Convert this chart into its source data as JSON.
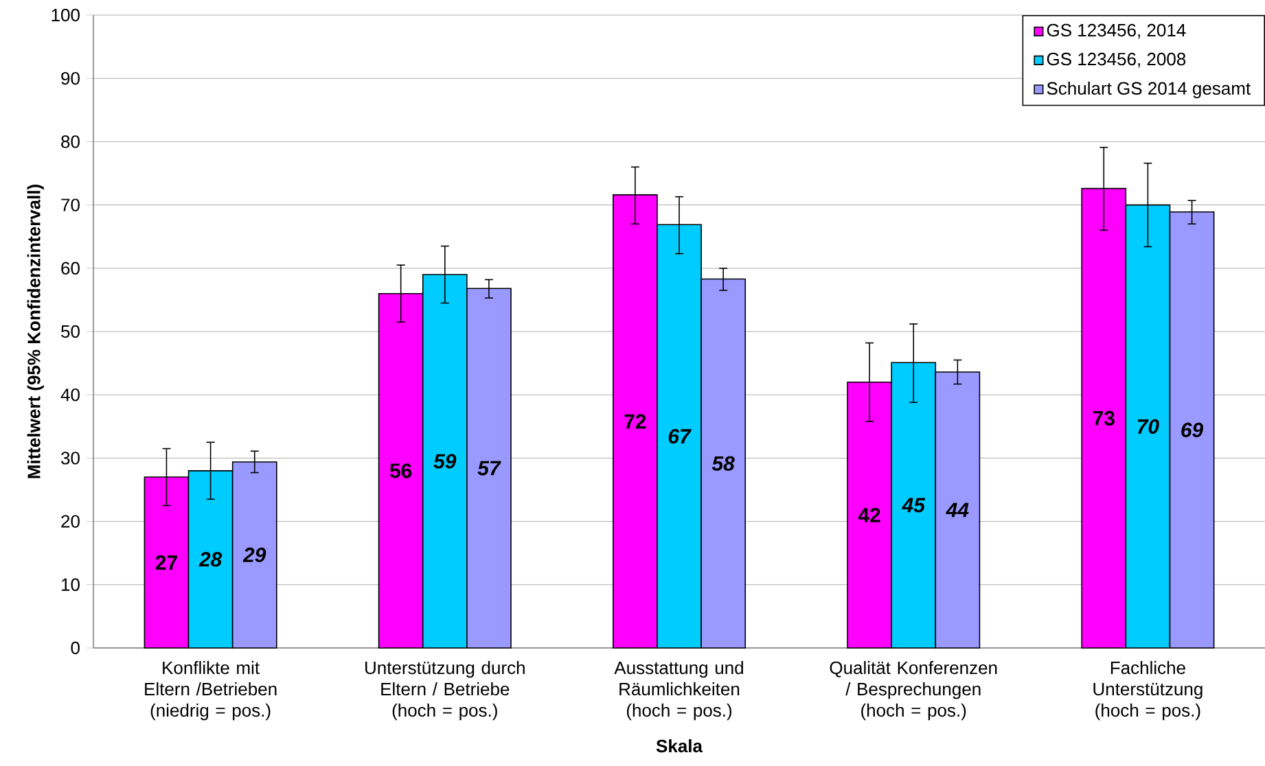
{
  "chart_data": {
    "type": "bar",
    "xlabel": "Skala",
    "ylabel": "Mittelwert (95% Konfidenzintervall)",
    "categories": [
      "Konflikte mit Eltern /Betrieben (niedrig = pos.)",
      "Unterstützung durch Eltern / Betriebe (hoch = pos.)",
      "Ausstattung und Räumlichkeiten (hoch = pos.)",
      "Qualität Konferenzen / Besprechungen (hoch = pos.)",
      "Fachliche Unterstützung (hoch = pos.)"
    ],
    "series": [
      {
        "name": "GS 123456, 2014",
        "color": "#ff00ff",
        "values": [
          27.0,
          56.0,
          71.6,
          42.0,
          72.6
        ],
        "errors": [
          [
            22.5,
            31.5
          ],
          [
            51.5,
            60.5
          ],
          [
            67.0,
            76.0
          ],
          [
            35.8,
            48.2
          ],
          [
            66.0,
            79.1
          ]
        ],
        "value_labels": [
          "27",
          "56",
          "72",
          "42",
          "73"
        ]
      },
      {
        "name": "GS 123456, 2008",
        "color": "#00ccff",
        "values": [
          28.0,
          59.0,
          66.9,
          45.1,
          70.0
        ],
        "errors": [
          [
            23.5,
            32.5
          ],
          [
            54.5,
            63.5
          ],
          [
            62.3,
            71.3
          ],
          [
            38.8,
            51.2
          ],
          [
            63.4,
            76.6
          ]
        ],
        "value_labels": [
          "28",
          "59",
          "67",
          "45",
          "70"
        ]
      },
      {
        "name": "Schulart GS 2014 gesamt",
        "color": "#9999ff",
        "values": [
          29.4,
          56.8,
          58.3,
          43.6,
          68.9
        ],
        "errors": [
          [
            27.7,
            31.1
          ],
          [
            55.3,
            58.2
          ],
          [
            56.5,
            60.0
          ],
          [
            41.7,
            45.5
          ],
          [
            67.0,
            70.7
          ]
        ],
        "value_labels": [
          "29",
          "57",
          "58",
          "44",
          "69"
        ]
      }
    ],
    "ylim": [
      0,
      100
    ],
    "yticks": [
      0,
      10,
      20,
      30,
      40,
      50,
      60,
      70,
      80,
      90,
      100
    ],
    "grid": "y",
    "legend": "top right"
  }
}
